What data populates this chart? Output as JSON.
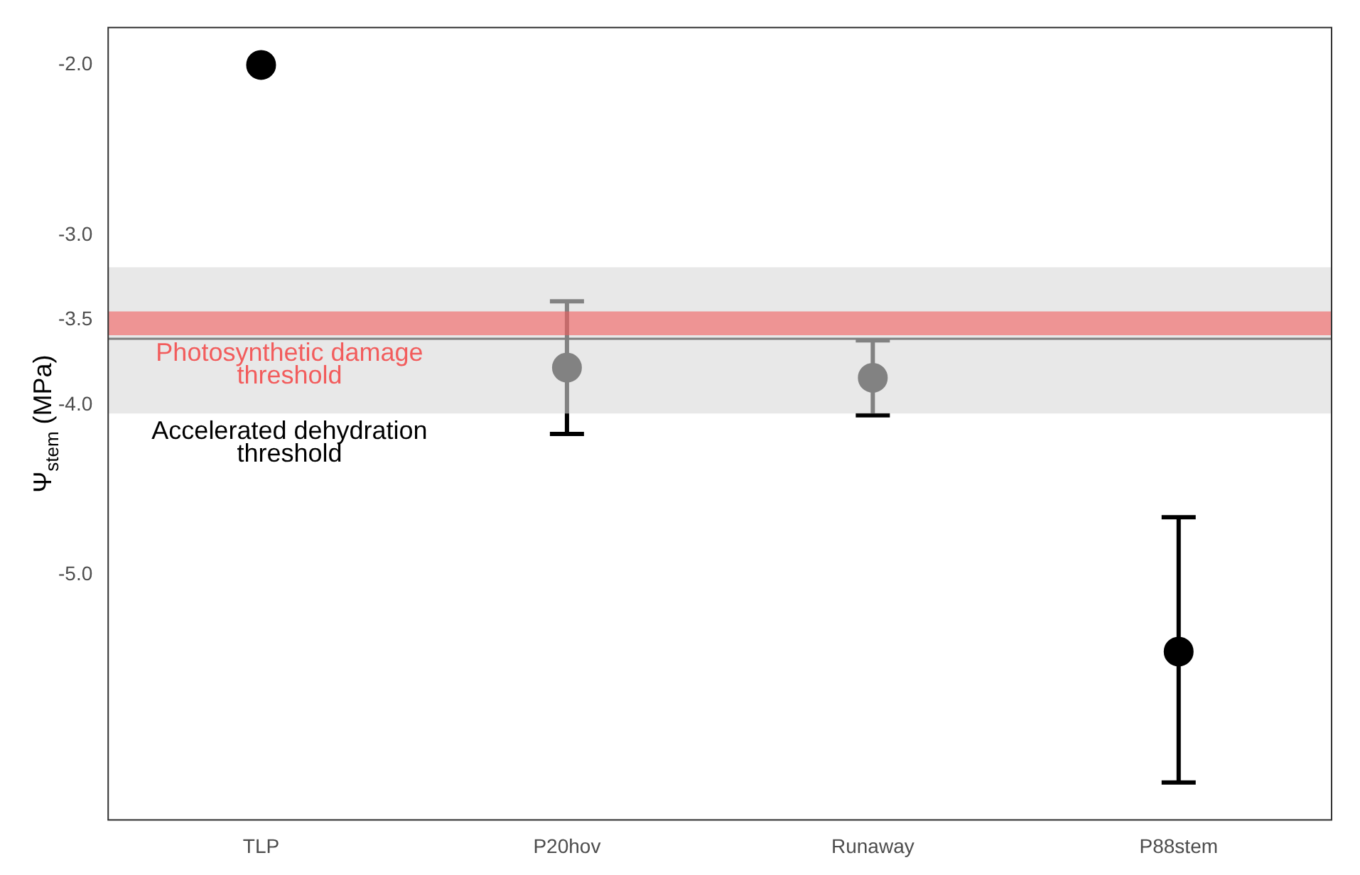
{
  "chart_data": {
    "type": "scatter",
    "ylabel": "Ψ$_{stem}$ (MPa)",
    "categories": [
      "TLP",
      "P20hov",
      "Runaway",
      "P88stem"
    ],
    "series": [
      {
        "color": "#000000",
        "values": [
          -2.0,
          -3.78,
          -3.84,
          -5.45
        ],
        "errors": [
          null,
          [
            -4.17,
            -3.39
          ],
          [
            -4.06,
            -3.62
          ],
          [
            -6.22,
            -4.66
          ]
        ]
      }
    ],
    "ylim": [
      -6.44,
      -1.78
    ],
    "yticks": [
      {
        "value": -2,
        "label": "-2.0"
      },
      {
        "value": -3,
        "label": "-3.0"
      },
      {
        "value": -3.5,
        "label": "-3.5"
      },
      {
        "value": -4,
        "label": "-4.0"
      },
      {
        "value": -5,
        "label": "-5.0"
      }
    ],
    "bands": [
      {
        "axis": "y",
        "from": -3.19,
        "to": -4.05,
        "label": "Accelerated dehydration threshold",
        "color": "#d9d9d9"
      },
      {
        "axis": "y",
        "from": -3.45,
        "to": -3.59,
        "label": "Photosynthetic damage threshold",
        "color": "#f25c5c"
      }
    ],
    "ref_lines": [
      {
        "axis": "y",
        "value": -3.61,
        "color": "#7f7f7f"
      }
    ],
    "marker": "circle",
    "grid": false,
    "legend": false
  }
}
